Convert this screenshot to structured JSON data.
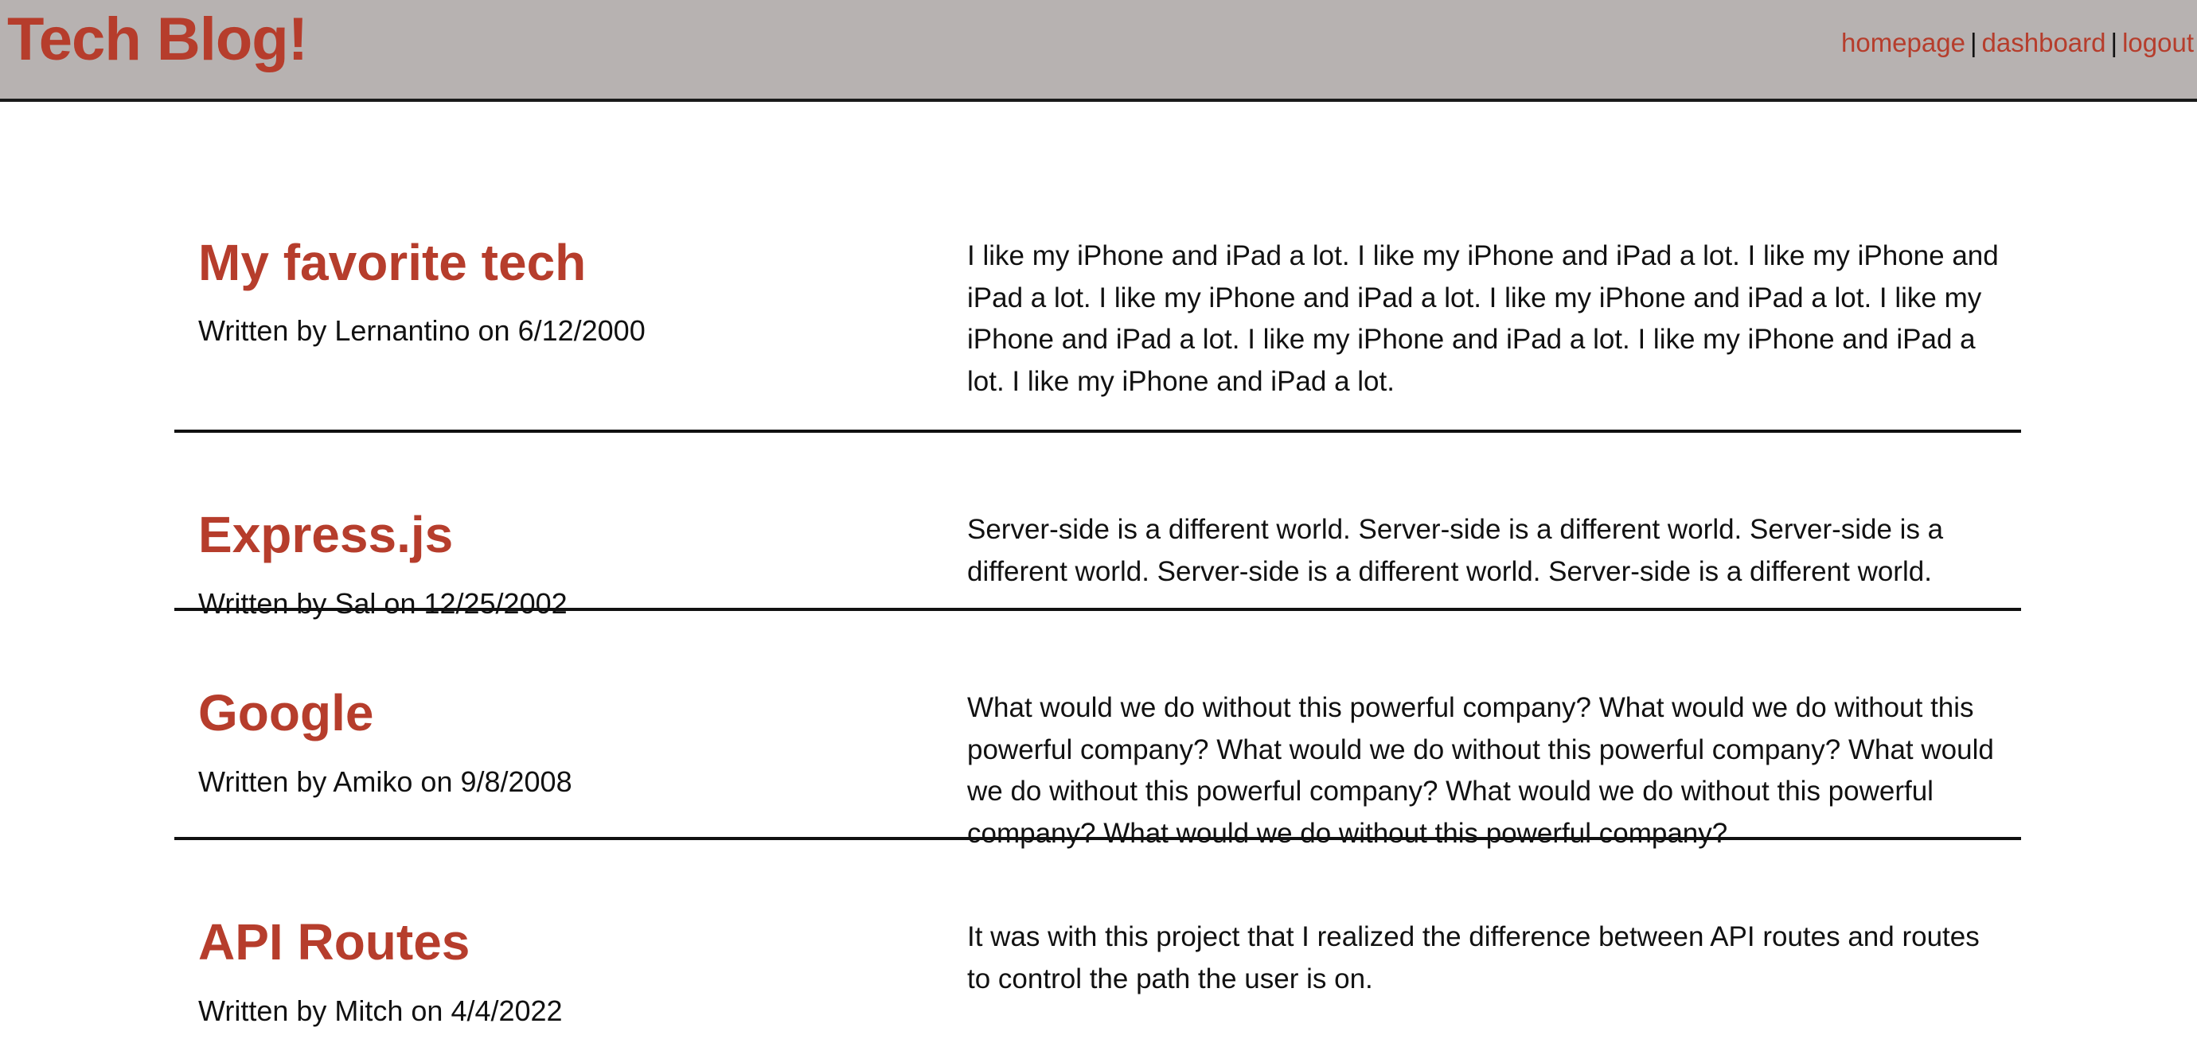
{
  "header": {
    "title": "Tech Blog!",
    "nav": {
      "homepage": "homepage",
      "dashboard": "dashboard",
      "logout": "logout",
      "separator": "|"
    }
  },
  "posts": [
    {
      "title": "My favorite tech",
      "meta": "Written by Lernantino on 6/12/2000",
      "body": "I like my iPhone and iPad a lot. I like my iPhone and iPad a lot. I like my iPhone and iPad a lot. I like my iPhone and iPad a lot. I like my iPhone and iPad a lot. I like my iPhone and iPad a lot. I like my iPhone and iPad a lot. I like my iPhone and iPad a lot. I like my iPhone and iPad a lot."
    },
    {
      "title": "Express.js",
      "meta": "Written by Sal on 12/25/2002",
      "body": "Server-side is a different world. Server-side is a different world. Server-side is a different world. Server-side is a different world. Server-side is a different world."
    },
    {
      "title": "Google",
      "meta": "Written by Amiko on 9/8/2008",
      "body": "What would we do without this powerful company? What would we do without this powerful company? What would we do without this powerful company? What would we do without this powerful company? What would we do without this powerful company? What would we do without this powerful company?"
    },
    {
      "title": "API Routes",
      "meta": "Written by Mitch on 4/4/2022",
      "body": "It was with this project that I realized the difference between API routes and routes to control the path the user is on."
    }
  ],
  "colors": {
    "accent": "#b63d2c",
    "header_bg": "#b7b2b1",
    "text": "#111111"
  }
}
